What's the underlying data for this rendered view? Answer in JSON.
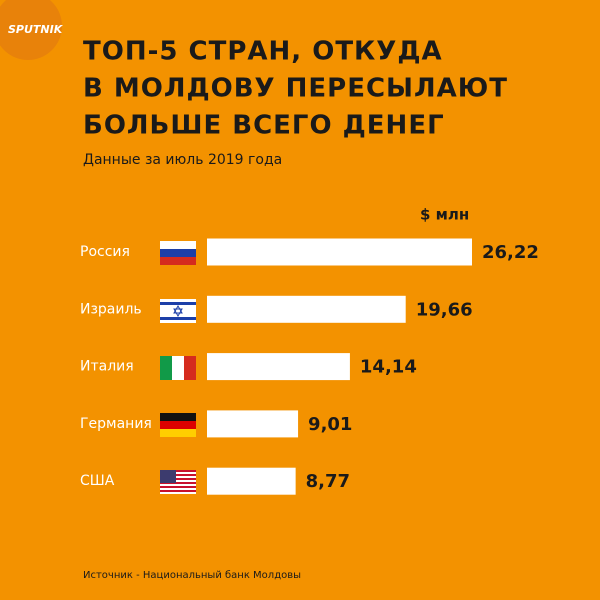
{
  "logo": "SPUTNIK",
  "chart_data": {
    "type": "bar",
    "title": [
      "ТОП-5 СТРАН, ОТКУДА",
      "В МОЛДОВУ ПЕРЕСЫЛАЮТ",
      "БОЛЬШЕ ВСЕГО ДЕНЕГ"
    ],
    "subtitle": "Данные за июль 2019 года",
    "unit_label": "$ млн",
    "categories": [
      "Россия",
      "Израиль",
      "Италия",
      "Германия",
      "США"
    ],
    "values": [
      26.22,
      19.66,
      14.14,
      9.01,
      8.77
    ],
    "value_labels": [
      "26,22",
      "19,66",
      "14,14",
      "9,01",
      "8,77"
    ],
    "color": "#ffffff",
    "source": "Источник - Национальный банк Молдовы"
  }
}
